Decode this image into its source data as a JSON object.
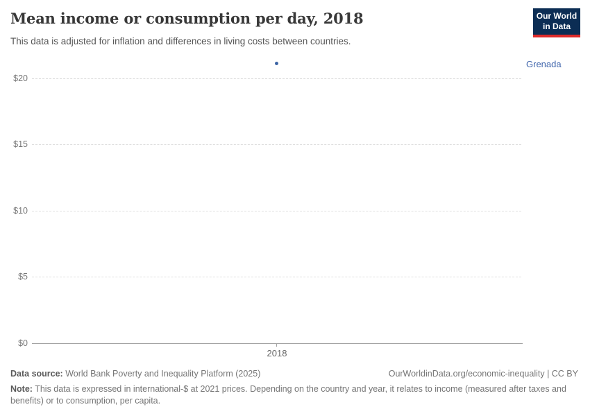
{
  "logo": {
    "line1": "Our World",
    "line2": "in Data"
  },
  "header": {
    "title": "Mean income or consumption per day, 2018",
    "subtitle": "This data is adjusted for inflation and differences in living costs between countries."
  },
  "chart_data": {
    "type": "scatter",
    "title": "Mean income or consumption per day, 2018",
    "x": [
      2018
    ],
    "series": [
      {
        "name": "Grenada",
        "values": [
          21.1
        ],
        "color": "#3d65a5"
      }
    ],
    "x_ticks": [
      "2018"
    ],
    "y_ticks": [
      "$0",
      "$5",
      "$10",
      "$15",
      "$20"
    ],
    "ylim": [
      0,
      21.5
    ],
    "xlabel": "",
    "ylabel": "",
    "grid": "horizontal-dashed",
    "legend_position": "entity-label-right"
  },
  "footer": {
    "datasource_label": "Data source:",
    "datasource_text": " World Bank Poverty and Inequality Platform (2025)",
    "link": "OurWorldinData.org/economic-inequality | CC BY",
    "note_label": "Note:",
    "note_text": " This data is expressed in international-$ at 2021 prices. Depending on the country and year, it relates to income (measured after taxes and benefits) or to consumption, per capita."
  }
}
